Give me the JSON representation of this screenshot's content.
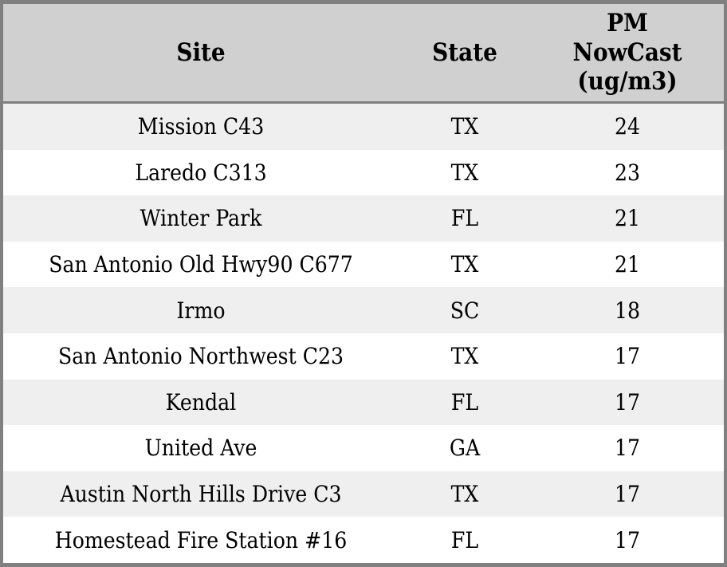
{
  "chart_data": {
    "type": "table",
    "title": "",
    "columns": [
      "Site",
      "State",
      "PM NowCast (ug/m3)"
    ],
    "header_lines": [
      [
        "Site"
      ],
      [
        "State"
      ],
      [
        "PM",
        "NowCast",
        "(ug/m3)"
      ]
    ],
    "rows": [
      [
        "Mission C43",
        "TX",
        24
      ],
      [
        "Laredo C313",
        "TX",
        23
      ],
      [
        "Winter Park",
        "FL",
        21
      ],
      [
        "San Antonio Old Hwy90 C677",
        "TX",
        21
      ],
      [
        "Irmo",
        "SC",
        18
      ],
      [
        "San Antonio Northwest C23",
        "TX",
        17
      ],
      [
        "Kendal",
        "FL",
        17
      ],
      [
        "United Ave",
        "GA",
        17
      ],
      [
        "Austin North Hills Drive C3",
        "TX",
        17
      ],
      [
        "Homestead Fire Station #16",
        "FL",
        17
      ]
    ],
    "layout": {
      "striped_rows": true,
      "header_position": "top"
    }
  },
  "colors": {
    "border": "#808080",
    "header_bg": "#d0d0d0",
    "header_divider": "#7f7f7f",
    "row_odd_bg": "#efefef",
    "row_even_bg": "#ffffff",
    "text": "#000000"
  }
}
